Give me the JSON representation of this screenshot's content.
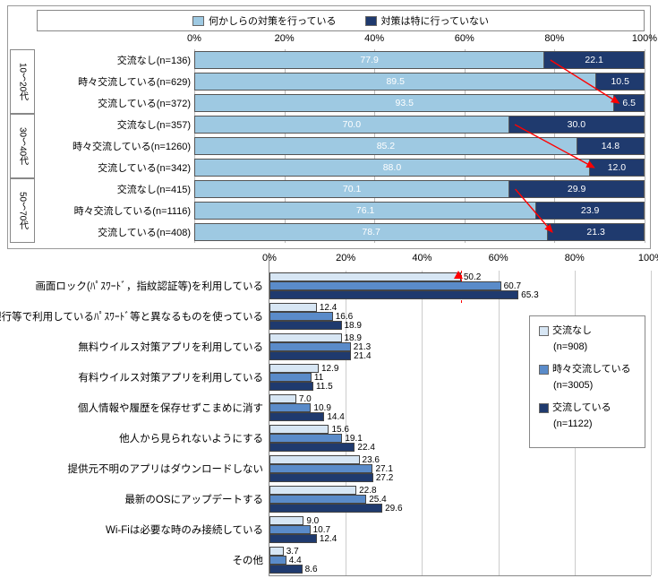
{
  "colors": {
    "light_blue": "#9ec9e2",
    "dark_navy": "#1f3a6e",
    "series_light": "#d7e6f4",
    "series_mid": "#5a8bc9",
    "series_dark": "#1f3a6e",
    "arrow": "#ff0000",
    "tri_marker": "#ff0000"
  },
  "top": {
    "legend": [
      "何かしらの対策を行っている",
      "対策は特に行っていない"
    ],
    "x_ticks": [
      "0%",
      "20%",
      "40%",
      "60%",
      "80%",
      "100%"
    ],
    "x_max": 100,
    "age_groups": [
      "10～20代",
      "30～40代",
      "50～70代"
    ],
    "rows": [
      {
        "age": 0,
        "label": "交流なし(n=136)",
        "a": 77.9,
        "b": 22.1
      },
      {
        "age": 0,
        "label": "時々交流している(n=629)",
        "a": 89.5,
        "b": 10.5
      },
      {
        "age": 0,
        "label": "交流している(n=372)",
        "a": 93.5,
        "b": 6.5
      },
      {
        "age": 1,
        "label": "交流なし(n=357)",
        "a": 70.0,
        "b": 30.0,
        "a_fmt": "70.0",
        "b_fmt": "30.0"
      },
      {
        "age": 1,
        "label": "時々交流している(n=1260)",
        "a": 85.2,
        "b": 14.8
      },
      {
        "age": 1,
        "label": "交流している(n=342)",
        "a": 88.0,
        "b": 12.0,
        "a_fmt": "88.0",
        "b_fmt": "12.0"
      },
      {
        "age": 2,
        "label": "交流なし(n=415)",
        "a": 70.1,
        "b": 29.9
      },
      {
        "age": 2,
        "label": "時々交流している(n=1116)",
        "a": 76.1,
        "b": 23.9
      },
      {
        "age": 2,
        "label": "交流している(n=408)",
        "a": 78.7,
        "b": 21.3
      }
    ]
  },
  "bottom": {
    "x_ticks": [
      "0%",
      "20%",
      "40%",
      "60%",
      "80%",
      "100%"
    ],
    "x_max": 100,
    "legend": [
      {
        "label": "交流なし",
        "n": "(n=908)",
        "color_key": "series_light"
      },
      {
        "label": "時々交流している",
        "n": "(n=3005)",
        "color_key": "series_mid"
      },
      {
        "label": "交流している",
        "n": "(n=1122)",
        "color_key": "series_dark"
      }
    ],
    "items": [
      {
        "label": "画面ロック(ﾊﾟｽﾜｰﾄﾞ，指紋認証等)を利用している",
        "v": [
          50.2,
          60.7,
          65.3
        ],
        "tri": true
      },
      {
        "label": "銀行等で利用しているﾊﾟｽﾜｰﾄﾞ等と異なるものを使っている",
        "v": [
          12.4,
          16.6,
          18.9
        ]
      },
      {
        "label": "無料ウイルス対策アプリを利用している",
        "v": [
          18.9,
          21.3,
          21.4
        ]
      },
      {
        "label": "有料ウイルス対策アプリを利用している",
        "v": [
          12.9,
          11.0,
          11.5
        ],
        "v_fmt": [
          "12.9",
          "11",
          "11.5"
        ]
      },
      {
        "label": "個人情報や履歴を保存せずこまめに消す",
        "v": [
          7.0,
          10.9,
          14.4
        ],
        "v_fmt": [
          "7.0",
          "10.9",
          "14.4"
        ]
      },
      {
        "label": "他人から見られないようにする",
        "v": [
          15.6,
          19.1,
          22.4
        ]
      },
      {
        "label": "提供元不明のアプリはダウンロードしない",
        "v": [
          23.6,
          27.1,
          27.2
        ]
      },
      {
        "label": "最新のOSにアップデートする",
        "v": [
          22.8,
          25.4,
          29.6
        ]
      },
      {
        "label": "Wi-Fiは必要な時のみ接続している",
        "v": [
          9.0,
          10.7,
          12.4
        ],
        "v_fmt": [
          "9.0",
          "10.7",
          "12.4"
        ]
      },
      {
        "label": "その他",
        "v": [
          3.7,
          4.4,
          8.6
        ]
      }
    ]
  }
}
